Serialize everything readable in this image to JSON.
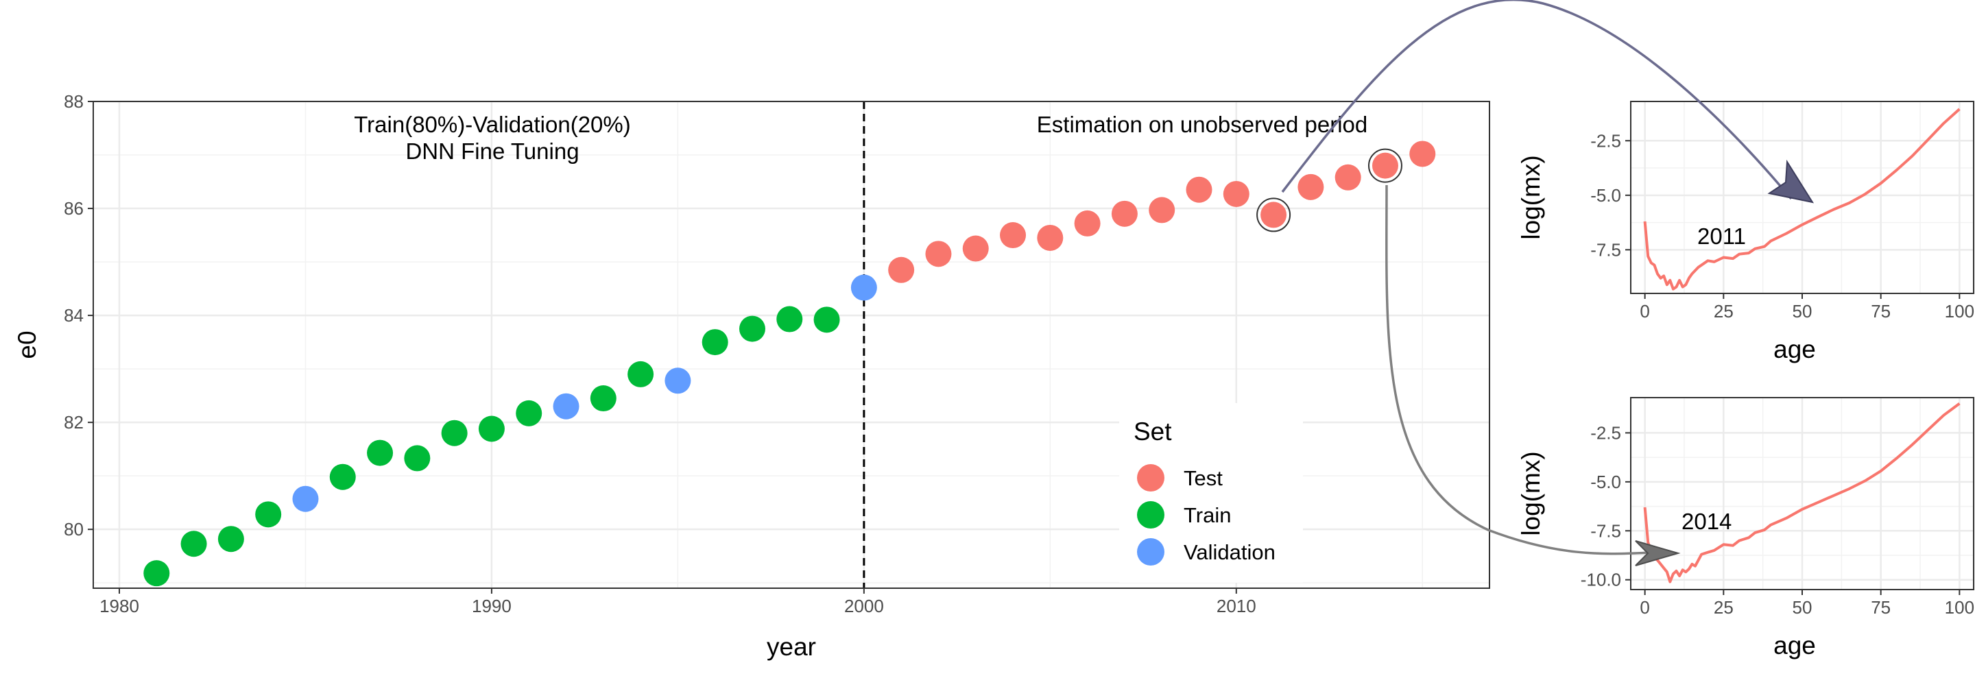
{
  "chart_data": [
    {
      "type": "scatter",
      "xlabel": "year",
      "ylabel": "e0",
      "xlim": [
        1979.3,
        2016.8
      ],
      "ylim": [
        78.9,
        88
      ],
      "xticks": [
        1980,
        1990,
        2000,
        2010
      ],
      "yticks": [
        80,
        82,
        84,
        86,
        88
      ],
      "grid": true,
      "vline": 2000,
      "annotations": {
        "train_line1": "Train(80%)-Validation(20%)",
        "train_line2": "DNN Fine Tuning",
        "estimation": "Estimation on unobserved period"
      },
      "legend": {
        "title": "Set",
        "position": "bottom-right",
        "entries": [
          {
            "label": "Test",
            "color": "#F8766D"
          },
          {
            "label": "Train",
            "color": "#00BA38"
          },
          {
            "label": "Validation",
            "color": "#619CFF"
          }
        ]
      },
      "series": [
        {
          "name": "Test",
          "color": "#F8766D",
          "x": [
            2001,
            2002,
            2003,
            2004,
            2005,
            2006,
            2007,
            2008,
            2009,
            2010,
            2011,
            2012,
            2013,
            2014,
            2015
          ],
          "y": [
            84.85,
            85.15,
            85.25,
            85.5,
            85.45,
            85.72,
            85.9,
            85.97,
            86.35,
            86.27,
            85.88,
            86.4,
            86.58,
            86.8,
            87.02
          ]
        },
        {
          "name": "Train",
          "color": "#00BA38",
          "x": [
            1981,
            1982,
            1983,
            1984,
            1986,
            1987,
            1988,
            1989,
            1990,
            1991,
            1993,
            1994,
            1996,
            1997,
            1998,
            1999
          ],
          "y": [
            79.18,
            79.73,
            79.82,
            80.28,
            80.98,
            81.43,
            81.33,
            81.8,
            81.88,
            82.17,
            82.45,
            82.9,
            83.5,
            83.75,
            83.93,
            83.92
          ]
        },
        {
          "name": "Validation",
          "color": "#619CFF",
          "x": [
            1985,
            1992,
            1995,
            2000
          ],
          "y": [
            80.57,
            82.3,
            82.78,
            84.52
          ]
        }
      ],
      "highlighted_years": [
        2011,
        2014
      ]
    },
    {
      "type": "line",
      "label": "2011",
      "xlabel": "age",
      "ylabel": "log(mx)",
      "xlim": [
        -4.5,
        104.5
      ],
      "ylim": [
        -9.5,
        -0.7
      ],
      "xticks": [
        0,
        25,
        50,
        75,
        100
      ],
      "yticks": [
        -2.5,
        -5.0,
        -7.5
      ],
      "ytick_labels": [
        "-2.5",
        "-5.0",
        "-7.5"
      ],
      "color": "#F8766D",
      "x": [
        0,
        1,
        2,
        3,
        4,
        5,
        6,
        7,
        8,
        9,
        10,
        11,
        12,
        13,
        14,
        15,
        17,
        20,
        22,
        25,
        28,
        30,
        33,
        35,
        38,
        40,
        45,
        50,
        55,
        60,
        65,
        70,
        75,
        80,
        85,
        90,
        95,
        100
      ],
      "y": [
        -6.2,
        -7.8,
        -8.1,
        -8.2,
        -8.6,
        -8.8,
        -8.7,
        -9.1,
        -8.9,
        -9.3,
        -9.2,
        -8.9,
        -9.2,
        -9.1,
        -8.8,
        -8.6,
        -8.3,
        -8.0,
        -8.05,
        -7.85,
        -7.9,
        -7.7,
        -7.65,
        -7.45,
        -7.35,
        -7.1,
        -6.75,
        -6.35,
        -6.0,
        -5.65,
        -5.35,
        -4.95,
        -4.45,
        -3.85,
        -3.2,
        -2.45,
        -1.7,
        -1.05
      ]
    },
    {
      "type": "line",
      "label": "2014",
      "xlabel": "age",
      "ylabel": "log(mx)",
      "xlim": [
        -4.5,
        104.5
      ],
      "ylim": [
        -10.5,
        -0.7
      ],
      "xticks": [
        0,
        25,
        50,
        75,
        100
      ],
      "yticks": [
        -2.5,
        -5.0,
        -7.5,
        -10.0
      ],
      "ytick_labels": [
        "-2.5",
        "-5.0",
        "-7.5",
        "-10.0"
      ],
      "color": "#F8766D",
      "x": [
        0,
        1,
        2,
        3,
        4,
        5,
        6,
        7,
        8,
        9,
        10,
        11,
        12,
        13,
        14,
        15,
        16,
        18,
        20,
        22,
        25,
        28,
        30,
        33,
        35,
        38,
        40,
        45,
        50,
        55,
        60,
        65,
        70,
        75,
        80,
        85,
        90,
        95,
        100
      ],
      "y": [
        -6.3,
        -8.1,
        -8.5,
        -8.9,
        -9.0,
        -9.2,
        -9.4,
        -9.6,
        -10.1,
        -9.7,
        -9.55,
        -9.8,
        -9.5,
        -9.6,
        -9.45,
        -9.2,
        -9.3,
        -8.7,
        -8.6,
        -8.5,
        -8.2,
        -8.25,
        -8.0,
        -7.85,
        -7.6,
        -7.45,
        -7.2,
        -6.85,
        -6.4,
        -6.05,
        -5.7,
        -5.35,
        -4.95,
        -4.45,
        -3.8,
        -3.1,
        -2.35,
        -1.6,
        -1.0
      ]
    }
  ]
}
